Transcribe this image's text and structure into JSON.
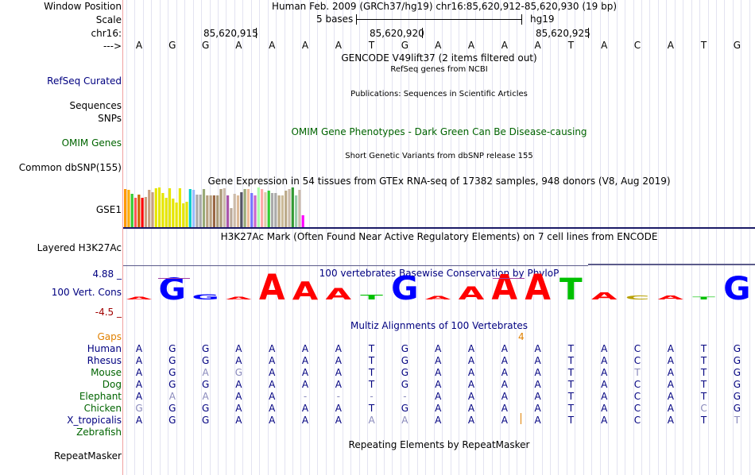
{
  "header": {
    "window_position_label": "Window Position",
    "window_position_value": "Human Feb. 2009 (GRCh37/hg19)   chr16:85,620,912-85,620,930 (19 bp)",
    "scale_label": "Scale",
    "scale_value": "5 bases",
    "assembly": "hg19",
    "chrom_label": "chr16:",
    "ruler_ticks": [
      "85,620,915",
      "85,620,920",
      "85,620,925"
    ],
    "strand_arrow": "--->"
  },
  "reference_sequence": [
    "A",
    "G",
    "G",
    "A",
    "A",
    "A",
    "A",
    "T",
    "G",
    "A",
    "A",
    "A",
    "A",
    "T",
    "A",
    "C",
    "A",
    "T",
    "G"
  ],
  "tracks": {
    "gencode_title": "GENCODE V49lift37 (2 items filtered out)",
    "refseq_title": "RefSeq genes from NCBI",
    "refseq_label": "RefSeq Curated",
    "publications_title": "Publications: Sequences in Scientific Articles",
    "sequences_label": "Sequences",
    "snps_label": "SNPs",
    "omim_title": "OMIM Gene Phenotypes - Dark Green Can Be Disease-causing",
    "omim_label": "OMIM Genes",
    "dbsnp_title": "Short Genetic Variants from dbSNP release 155",
    "dbsnp_label": "Common dbSNP(155)",
    "gtex_title": "Gene Expression in 54 tissues from GTEx RNA-seq of 17382 samples, 948 donors (V8, Aug 2019)",
    "gtex_label": "GSE1",
    "h3k27ac_title": "H3K27Ac Mark (Often Found Near Active Regulatory Elements) on 7 cell lines from ENCODE",
    "h3k27ac_label": "Layered H3K27Ac",
    "phylop_title": "100 vertebrates Basewise Conservation by PhyloP",
    "phylop_label": "100 Vert. Cons",
    "phylop_max": "4.88 _",
    "phylop_min": "-4.5 _",
    "multiz_title": "Multiz Alignments of 100 Vertebrates",
    "gaps_label": "Gaps",
    "gap_count": "4",
    "repeat_title": "Repeating Elements by RepeatMasker",
    "repeat_label": "RepeatMasker"
  },
  "colors": {
    "nav": "#000080",
    "omim": "#006400",
    "gaps": "#e08000",
    "phylop_min": "#a00000",
    "label_blue": "#000080",
    "label_green": "#006400",
    "grid": "#cccce6",
    "base_A": "#ff0000",
    "base_G": "#0000ff",
    "base_T": "#00c000",
    "base_C": "#b8a000"
  },
  "gtex_colors": [
    "#ff9900",
    "#ffaa00",
    "#33cc33",
    "#ff5555",
    "#cc6600",
    "#ff0000",
    "#c8a080",
    "#c8a080",
    "#c8a080",
    "#e6e600",
    "#e6e600",
    "#e6e600",
    "#e6e600",
    "#e6e600",
    "#e6e600",
    "#e6e600",
    "#e6e600",
    "#e6e600",
    "#e6e600",
    "#00cccc",
    "#99bbff",
    "#aaaaaa",
    "#aaaaaa",
    "#99aa77",
    "#b8a080",
    "#b8a080",
    "#996644",
    "#aa9977",
    "#aa9977",
    "#ccbbaa",
    "#aa55aa",
    "#bbaa99",
    "#ccbbaa",
    "#ddbb99",
    "#555566",
    "#99aa77",
    "#eebb99",
    "#7777ff",
    "#cc66cc",
    "#aaffaa",
    "#ffaaaa",
    "#ddccaa",
    "#33cc33",
    "#aaaaaa",
    "#aaaaaa",
    "#bbaa88",
    "#ccbb99",
    "#bbaa88",
    "#ccbbaa",
    "#339933",
    "#99ccaa",
    "#ccbbaa",
    "#ff00ff"
  ],
  "gtex_values": [
    0.96,
    0.94,
    0.84,
    0.74,
    0.82,
    0.74,
    0.76,
    0.94,
    0.88,
    0.98,
    1.0,
    0.86,
    0.74,
    0.98,
    0.72,
    0.62,
    0.98,
    0.6,
    0.64,
    0.96,
    0.94,
    0.82,
    0.82,
    0.96,
    0.8,
    0.8,
    0.8,
    0.8,
    0.96,
    0.98,
    0.8,
    0.48,
    0.84,
    0.8,
    0.88,
    0.96,
    0.96,
    0.86,
    0.8,
    1.0,
    0.96,
    0.88,
    0.92,
    0.86,
    0.86,
    0.8,
    0.8,
    0.92,
    0.96,
    1.0,
    0.8,
    0.94,
    0.3
  ],
  "phylop_logo": [
    {
      "base": "A",
      "score": 0.1
    },
    {
      "base": "G",
      "score": 0.85
    },
    {
      "base": "G",
      "score": 0.2
    },
    {
      "base": "A",
      "score": 0.1
    },
    {
      "base": "A",
      "score": 1.0
    },
    {
      "base": "A",
      "score": 0.7
    },
    {
      "base": "A",
      "score": 0.45
    },
    {
      "base": "T",
      "score": 0.18
    },
    {
      "base": "G",
      "score": 0.92
    },
    {
      "base": "A",
      "score": 0.14
    },
    {
      "base": "A",
      "score": 0.5
    },
    {
      "base": "A",
      "score": 0.98
    },
    {
      "base": "A",
      "score": 1.0
    },
    {
      "base": "T",
      "score": 0.85
    },
    {
      "base": "A",
      "score": 0.28
    },
    {
      "base": "C",
      "score": 0.16
    },
    {
      "base": "A",
      "score": 0.16
    },
    {
      "base": "T",
      "score": 0.0
    },
    {
      "base": "G",
      "score": 0.9
    }
  ],
  "alignments": [
    {
      "species": "Human",
      "color": "#000080",
      "seq": [
        "A",
        "G",
        "G",
        "A",
        "A",
        "A",
        "A",
        "T",
        "G",
        "A",
        "A",
        "A",
        "A",
        "T",
        "A",
        "C",
        "A",
        "T",
        "G"
      ],
      "faded": []
    },
    {
      "species": "Rhesus",
      "color": "#000080",
      "seq": [
        "A",
        "G",
        "G",
        "A",
        "A",
        "A",
        "A",
        "T",
        "G",
        "A",
        "A",
        "A",
        "A",
        "T",
        "A",
        "C",
        "A",
        "T",
        "G"
      ],
      "faded": []
    },
    {
      "species": "Mouse",
      "color": "#006400",
      "seq": [
        "A",
        "G",
        "A",
        "G",
        "A",
        "A",
        "A",
        "T",
        "G",
        "A",
        "A",
        "A",
        "A",
        "T",
        "A",
        "T",
        "A",
        "T",
        "G"
      ],
      "faded": [
        2,
        3,
        15
      ]
    },
    {
      "species": "Dog",
      "color": "#006400",
      "seq": [
        "A",
        "G",
        "G",
        "A",
        "A",
        "A",
        "A",
        "T",
        "G",
        "A",
        "A",
        "A",
        "A",
        "T",
        "A",
        "C",
        "A",
        "T",
        "G"
      ],
      "faded": []
    },
    {
      "species": "Elephant",
      "color": "#006400",
      "seq": [
        "A",
        "A",
        "A",
        "A",
        "A",
        "-",
        "-",
        "-",
        "-",
        "A",
        "A",
        "A",
        "A",
        "T",
        "A",
        "C",
        "A",
        "T",
        "G"
      ],
      "faded": [
        1,
        2,
        5,
        6,
        7,
        8
      ]
    },
    {
      "species": "Chicken",
      "color": "#006400",
      "seq": [
        "G",
        "G",
        "G",
        "A",
        "A",
        "A",
        "A",
        "T",
        "G",
        "A",
        "A",
        "A",
        "A",
        "T",
        "A",
        "C",
        "A",
        "C",
        "G"
      ],
      "faded": [
        0,
        17
      ]
    },
    {
      "species": "X_tropicalis",
      "color": "#000080",
      "seq": [
        "A",
        "G",
        "G",
        "A",
        "A",
        "A",
        "A",
        "A",
        "A",
        "A",
        "A",
        "A",
        "A",
        "T",
        "A",
        "C",
        "A",
        "T",
        "T"
      ],
      "faded": [
        7,
        8,
        18
      ]
    },
    {
      "species": "Zebrafish",
      "color": "#006400",
      "seq": [],
      "faded": []
    }
  ]
}
